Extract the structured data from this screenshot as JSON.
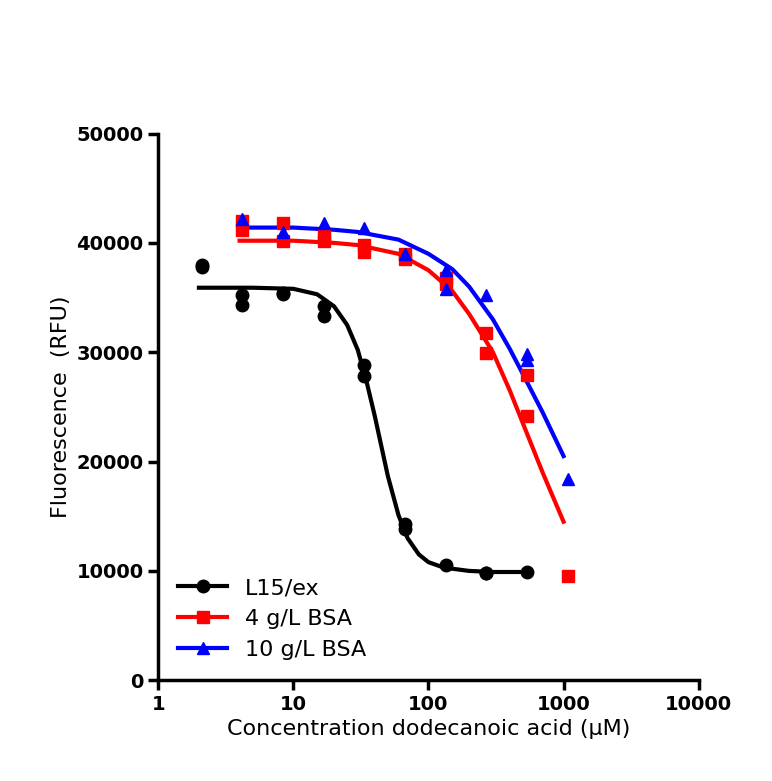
{
  "chart_data": {
    "type": "scatter",
    "x_label": "Concentration dodecanoic acid (µM)",
    "y_label": "Fluorescence  (RFU)",
    "log": "x",
    "xlim": [
      1,
      10000
    ],
    "xticks": [
      1,
      10,
      100,
      1000,
      10000
    ],
    "ylim": [
      0,
      50000
    ],
    "yticks": [
      0,
      10000,
      20000,
      30000,
      40000,
      50000
    ],
    "grid": false,
    "legend": "lower left",
    "series": [
      {
        "name": "L15/ex",
        "color": "#000000",
        "marker": "o",
        "line_style": "solid",
        "x": [
          2.1,
          2.1,
          4.2,
          4.2,
          8.4,
          8.4,
          16.8,
          16.8,
          33.6,
          33.6,
          67,
          67,
          134,
          268,
          268,
          536
        ],
        "values": [
          38000,
          37800,
          35200,
          34300,
          35400,
          35300,
          34200,
          33300,
          28800,
          27800,
          14300,
          13800,
          10500,
          9800,
          9800,
          9900
        ],
        "fit": {
          "x": [
            2,
            5,
            10,
            15,
            20,
            25,
            30,
            35,
            40,
            45,
            50,
            60,
            70,
            85,
            100,
            130,
            200,
            300,
            536
          ],
          "values": [
            35900,
            35900,
            35800,
            35300,
            34200,
            32500,
            30200,
            27200,
            24200,
            21300,
            18700,
            15100,
            13000,
            11500,
            10800,
            10300,
            10000,
            9900,
            9900
          ]
        }
      },
      {
        "name": "4 g/L BSA",
        "color": "#ff0000",
        "marker": "s",
        "line_style": "solid",
        "x": [
          4.2,
          4.2,
          8.4,
          8.4,
          16.8,
          16.8,
          33.6,
          33.6,
          67,
          67,
          134,
          134,
          268,
          268,
          536,
          536,
          1072
        ],
        "values": [
          42000,
          41200,
          41800,
          40200,
          40700,
          40200,
          39800,
          39200,
          39000,
          38500,
          36200,
          36800,
          31800,
          29900,
          27900,
          24200,
          9500
        ],
        "fit": {
          "x": [
            4,
            10,
            20,
            30,
            60,
            100,
            150,
            200,
            300,
            400,
            500,
            700,
            1000
          ],
          "values": [
            40200,
            40200,
            40000,
            39800,
            39000,
            37500,
            35600,
            33500,
            30000,
            26500,
            23500,
            19000,
            14500
          ]
        }
      },
      {
        "name": "10 g/L BSA",
        "color": "#0000ff",
        "marker": "^",
        "line_style": "solid",
        "x": [
          4.2,
          8.4,
          16.8,
          33.6,
          67,
          134,
          134,
          268,
          536,
          536,
          1072
        ],
        "values": [
          42200,
          41000,
          41800,
          41400,
          39000,
          37500,
          35800,
          35200,
          29800,
          29300,
          18400
        ],
        "fit": {
          "x": [
            4,
            10,
            20,
            30,
            60,
            100,
            150,
            200,
            300,
            400,
            500,
            700,
            1000
          ],
          "values": [
            41400,
            41400,
            41200,
            41000,
            40300,
            39000,
            37600,
            36000,
            33000,
            30300,
            28000,
            24500,
            20500
          ]
        }
      }
    ]
  }
}
